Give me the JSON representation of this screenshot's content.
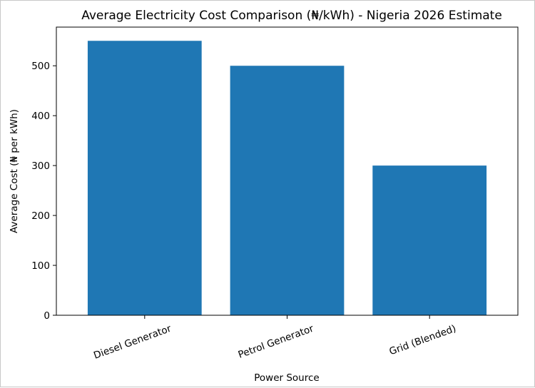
{
  "chart_data": {
    "type": "bar",
    "title": "Average Electricity Cost Comparison (₦/kWh) - Nigeria 2026 Estimate",
    "xlabel": "Power Source",
    "ylabel": "Average Cost (₦ per kWh)",
    "categories": [
      "Diesel Generator",
      "Petrol Generator",
      "Grid (Blended)"
    ],
    "values": [
      550,
      500,
      300
    ],
    "yticks": [
      0,
      100,
      200,
      300,
      400,
      500
    ],
    "ylim": [
      0,
      577.5
    ],
    "bar_color": "#1f77b4",
    "grid": false,
    "x_tick_rotation": -20
  }
}
